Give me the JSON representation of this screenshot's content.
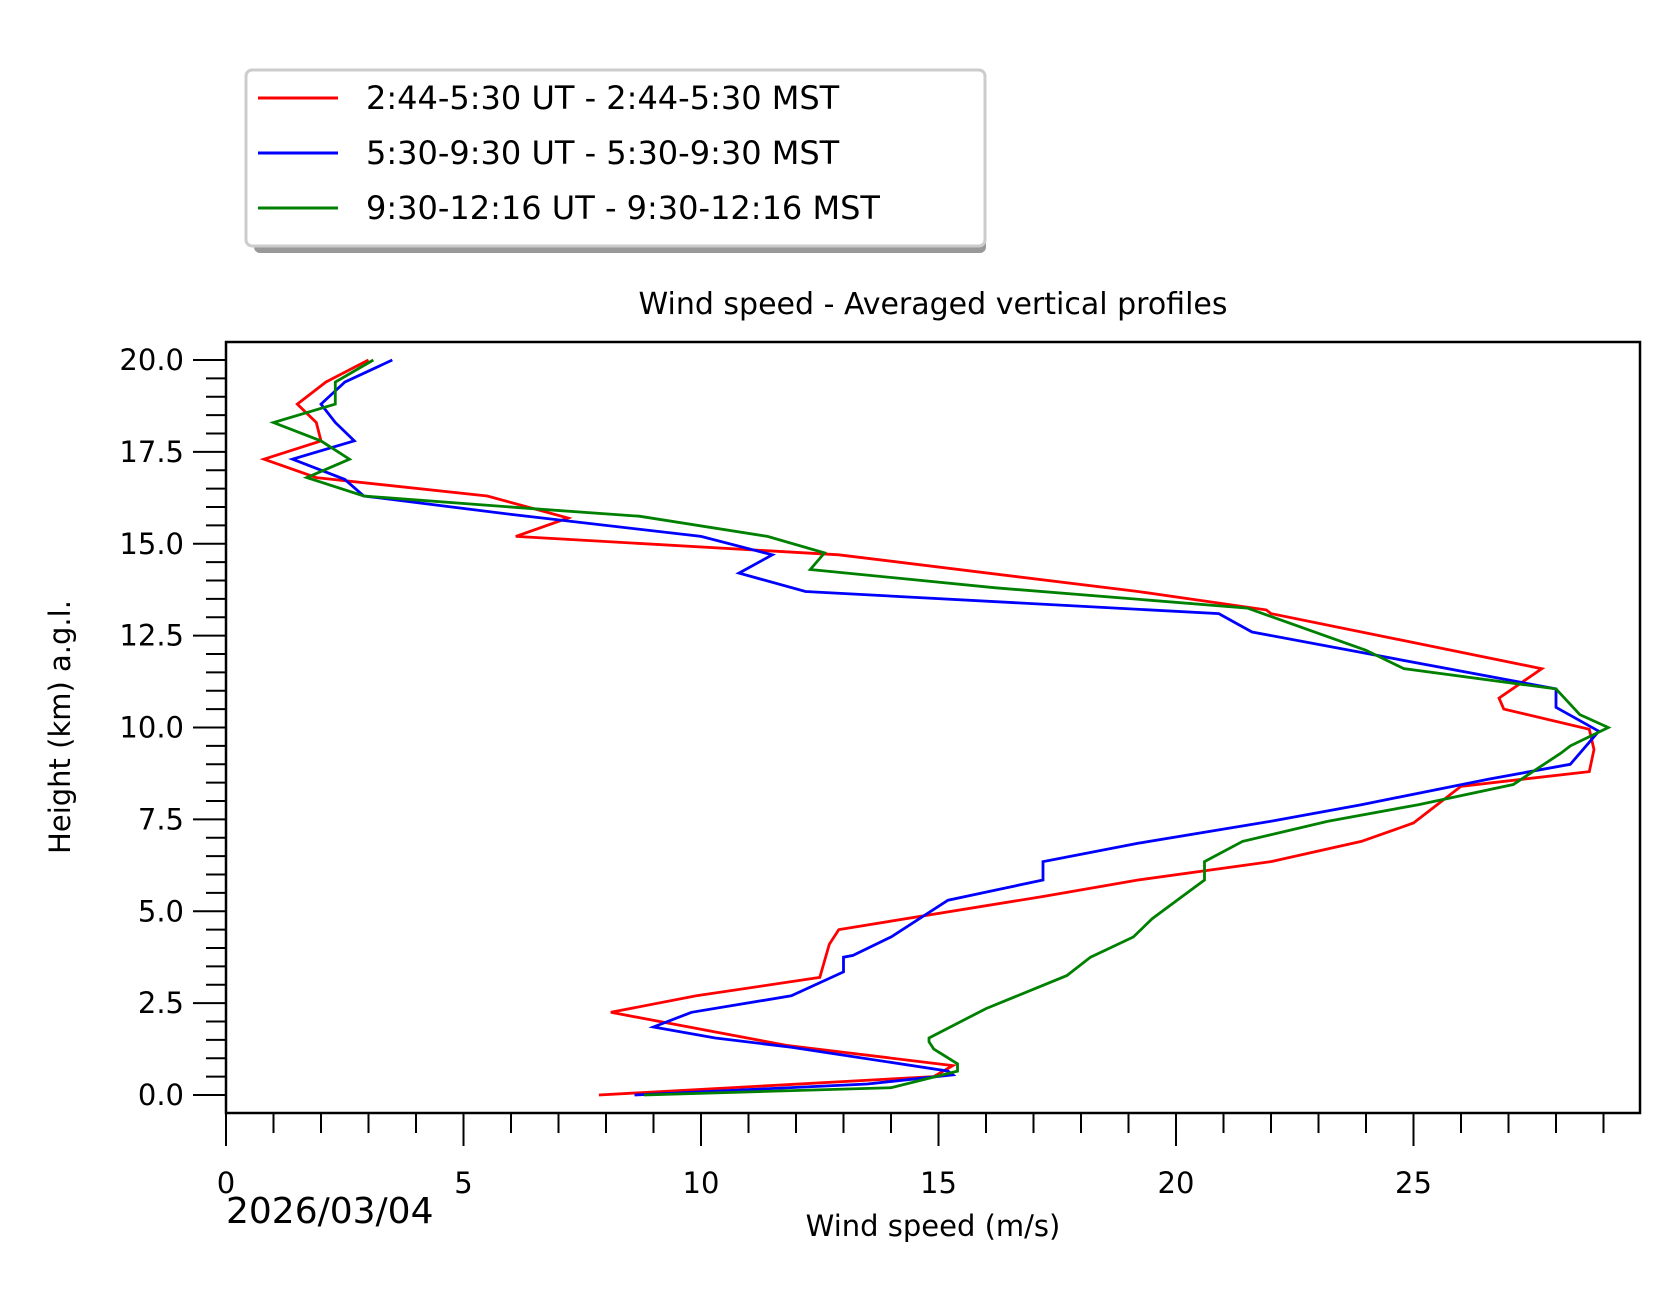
{
  "chart_data": {
    "type": "line",
    "title": "Wind speed - Averaged vertical profiles",
    "xlabel": "Wind speed (m/s)",
    "ylabel": "Height (km) a.g.l.",
    "xlim": [
      0,
      29.8
    ],
    "ylim": [
      -0.5,
      20.5
    ],
    "xticks": [
      0,
      5,
      10,
      15,
      20,
      25
    ],
    "xtick_labels": [
      "0",
      "5",
      "10",
      "15",
      "20",
      "25"
    ],
    "yticks": [
      0.0,
      2.5,
      5.0,
      7.5,
      10.0,
      12.5,
      15.0,
      17.5,
      20.0
    ],
    "ytick_labels": [
      "0.0",
      "2.5",
      "5.0",
      "7.5",
      "10.0",
      "12.5",
      "15.0",
      "17.5",
      "20.0"
    ],
    "grid": false,
    "legend_position": "top-left, outside above plot",
    "annotation": "2026/03/04",
    "series": [
      {
        "name": "2:44-5:30 UT - 2:44-5:30 MST",
        "color": "#ff0000",
        "x": [
          7.85,
          14.9,
          15.3,
          11.8,
          8.1,
          9.9,
          12.5,
          12.7,
          12.9,
          17.2,
          19.2,
          22.0,
          23.9,
          25.0,
          26.0,
          28.7,
          28.8,
          28.7,
          26.9,
          26.8,
          27.7,
          22.0,
          21.9,
          19.2,
          12.9,
          6.1,
          7.2,
          5.5,
          1.9,
          0.8,
          2.0,
          1.9,
          1.5,
          2.1,
          3.0
        ],
        "y": [
          0.0,
          0.5,
          0.8,
          1.35,
          2.25,
          2.7,
          3.2,
          4.1,
          4.5,
          5.4,
          5.85,
          6.35,
          6.9,
          7.4,
          8.4,
          8.8,
          9.4,
          9.95,
          10.5,
          10.8,
          11.6,
          13.1,
          13.2,
          13.7,
          14.7,
          15.2,
          15.7,
          16.3,
          16.8,
          17.3,
          17.8,
          18.3,
          18.8,
          19.4,
          20.0
        ]
      },
      {
        "name": "5:30-9:30 UT - 5:30-9:30 MST",
        "color": "#0000ff",
        "x": [
          8.6,
          13.5,
          15.3,
          15.2,
          11.9,
          10.3,
          9.0,
          9.8,
          11.9,
          13.0,
          13.0,
          13.2,
          14.0,
          15.2,
          17.2,
          17.2,
          19.2,
          22.0,
          23.9,
          26.6,
          28.3,
          28.9,
          28.0,
          28.0,
          21.6,
          20.9,
          12.2,
          10.8,
          11.5,
          10.0,
          6.0,
          2.9,
          2.5,
          1.4,
          2.7,
          2.3,
          2.0,
          2.5,
          3.5
        ],
        "y": [
          0.0,
          0.3,
          0.55,
          0.65,
          1.3,
          1.55,
          1.85,
          2.25,
          2.7,
          3.35,
          3.75,
          3.8,
          4.3,
          5.3,
          5.85,
          6.35,
          6.85,
          7.45,
          7.9,
          8.6,
          9.0,
          9.9,
          10.55,
          11.05,
          12.6,
          13.1,
          13.7,
          14.2,
          14.7,
          15.2,
          15.8,
          16.3,
          16.75,
          17.3,
          17.8,
          18.3,
          18.8,
          19.4,
          20.0
        ]
      },
      {
        "name": "9:30-12:16 UT - 9:30-12:16 MST",
        "color": "#008000",
        "x": [
          8.8,
          14.0,
          15.4,
          15.4,
          14.9,
          14.8,
          14.8,
          16.0,
          17.7,
          18.2,
          19.1,
          19.5,
          20.6,
          20.6,
          21.4,
          23.2,
          25.1,
          27.1,
          28.1,
          28.3,
          29.1,
          28.5,
          28.0,
          24.8,
          24.0,
          21.5,
          16.2,
          12.3,
          12.6,
          11.4,
          8.7,
          6.5,
          2.9,
          1.7,
          2.6,
          2.0,
          1.0,
          2.3,
          2.3,
          3.1
        ],
        "y": [
          0.0,
          0.2,
          0.65,
          0.85,
          1.25,
          1.45,
          1.55,
          2.35,
          3.25,
          3.75,
          4.3,
          4.8,
          5.85,
          6.35,
          6.9,
          7.45,
          7.9,
          8.45,
          9.3,
          9.5,
          10.0,
          10.35,
          11.05,
          11.6,
          12.1,
          13.25,
          13.8,
          14.3,
          14.75,
          15.2,
          15.75,
          15.95,
          16.3,
          16.8,
          17.3,
          17.8,
          18.3,
          18.8,
          19.4,
          20.0
        ]
      }
    ]
  }
}
